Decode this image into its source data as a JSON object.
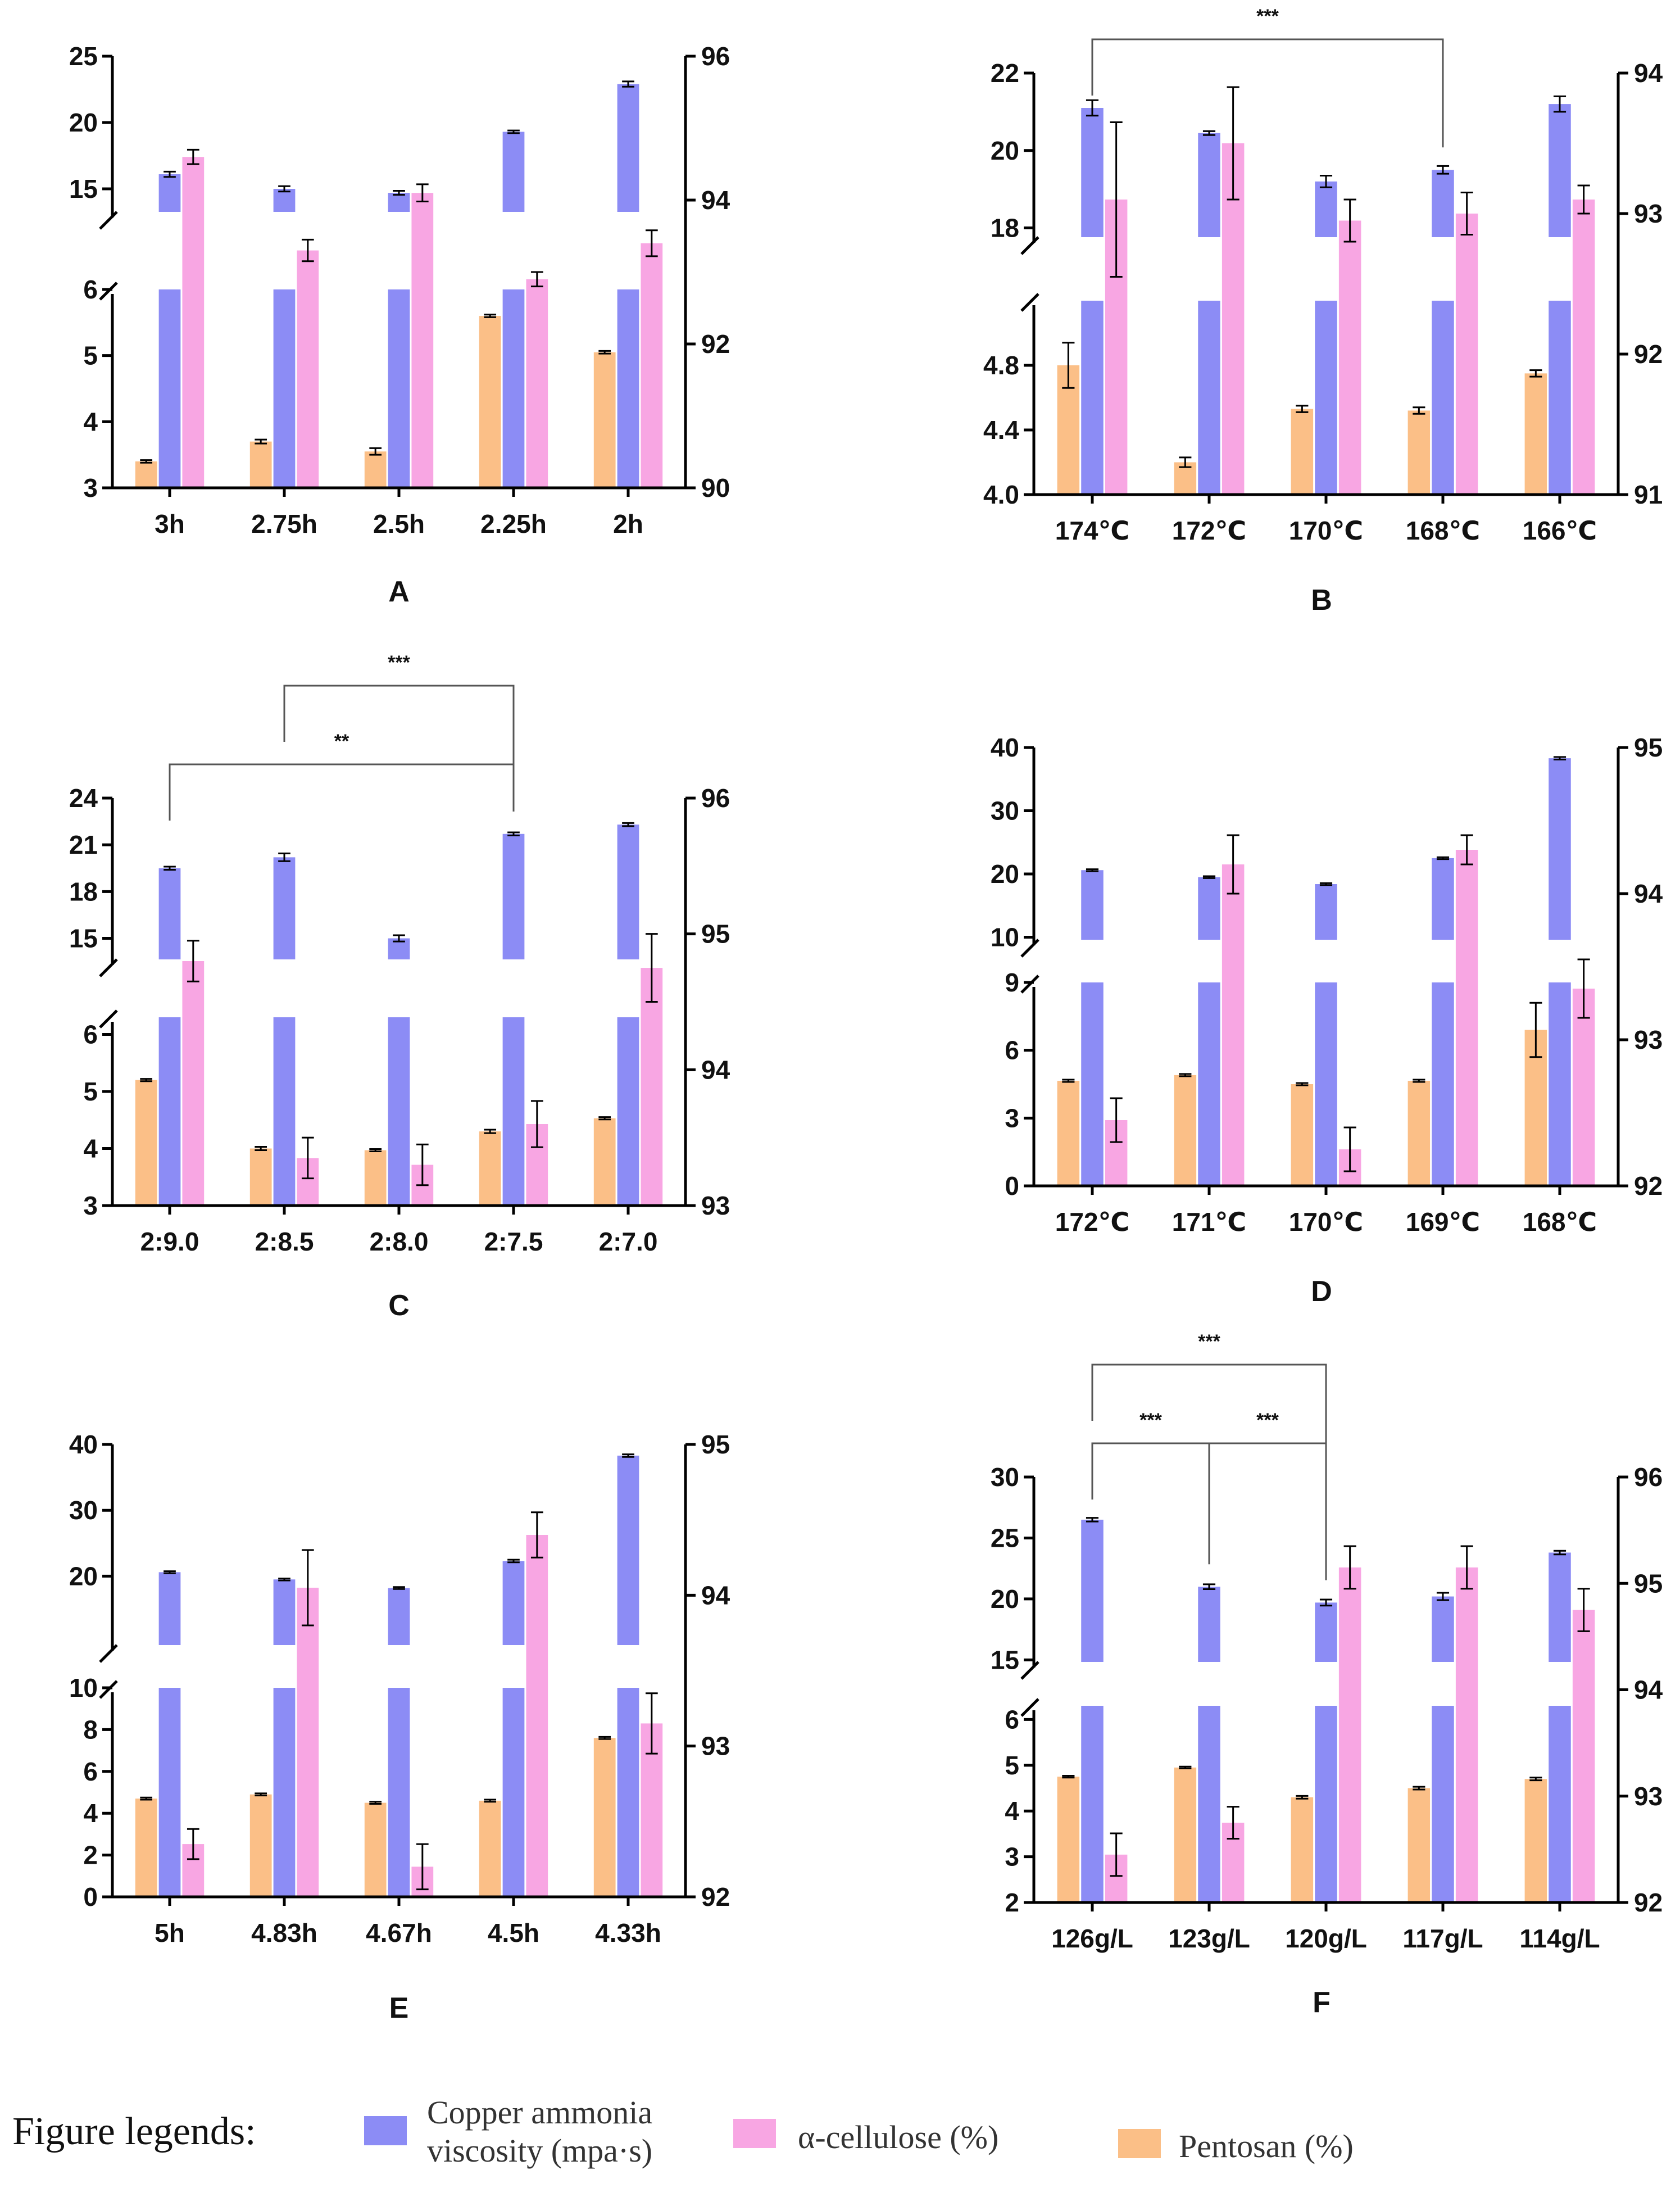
{
  "colors": {
    "viscosity": "#8c8cf5",
    "cellulose": "#f8a6e3",
    "pentosan": "#fbbf87",
    "axis": "#000000"
  },
  "legend": {
    "title": "Figure legends:",
    "items": [
      {
        "key": "viscosity",
        "lines": [
          "Copper ammonia",
          "viscosity (mpa·s)"
        ]
      },
      {
        "key": "cellulose",
        "lines": [
          "α-cellulose (%)"
        ]
      },
      {
        "key": "pentosan",
        "lines": [
          "Pentosan (%)"
        ]
      }
    ]
  },
  "chart_data": [
    {
      "panel": "A",
      "type": "bar",
      "categories": [
        "3h",
        "2.75h",
        "2.5h",
        "2.25h",
        "2h"
      ],
      "left_axis": {
        "lower": [
          3,
          6
        ],
        "lower_ticks": [
          "3",
          "4",
          "5",
          "6"
        ],
        "upper": [
          12.5,
          25
        ],
        "upper_ticks": [
          "15",
          "20",
          "25"
        ]
      },
      "right_axis": {
        "range": [
          90,
          96
        ],
        "ticks": [
          "90",
          "92",
          "94",
          "96"
        ]
      },
      "series": [
        {
          "name": "Pentosan (%)",
          "key": "pentosan",
          "axis": "left",
          "values": [
            3.4,
            3.7,
            3.55,
            5.6,
            5.05
          ],
          "errors": [
            0.02,
            0.03,
            0.05,
            0.02,
            0.02
          ]
        },
        {
          "name": "Copper ammonia viscosity (mpa·s)",
          "key": "viscosity",
          "axis": "left",
          "values": [
            16.1,
            15.0,
            14.7,
            19.3,
            22.9
          ],
          "errors": [
            0.2,
            0.2,
            0.15,
            0.1,
            0.2
          ]
        },
        {
          "name": "α-cellulose (%)",
          "key": "cellulose",
          "axis": "right",
          "values": [
            94.6,
            93.3,
            94.1,
            92.9,
            93.4
          ],
          "errors": [
            0.1,
            0.15,
            0.12,
            0.1,
            0.18
          ]
        }
      ],
      "brackets": []
    },
    {
      "panel": "B",
      "type": "bar",
      "categories": [
        "174℃",
        "172℃",
        "170℃",
        "168℃",
        "166℃"
      ],
      "left_axis": {
        "lower": [
          4.0,
          5.2
        ],
        "lower_ticks": [
          "4.0",
          "4.4",
          "4.8"
        ],
        "upper": [
          17.5,
          22
        ],
        "upper_ticks": [
          "18",
          "20",
          "22"
        ]
      },
      "right_axis": {
        "range": [
          91,
          94
        ],
        "ticks": [
          "91",
          "92",
          "93",
          "94"
        ]
      },
      "series": [
        {
          "name": "Pentosan (%)",
          "key": "pentosan",
          "axis": "left",
          "values": [
            4.8,
            4.2,
            4.53,
            4.52,
            4.75
          ],
          "errors": [
            0.14,
            0.03,
            0.02,
            0.02,
            0.02
          ]
        },
        {
          "name": "Copper ammonia viscosity (mpa·s)",
          "key": "viscosity",
          "axis": "left",
          "values": [
            21.1,
            20.45,
            19.2,
            19.5,
            21.2
          ],
          "errors": [
            0.2,
            0.05,
            0.15,
            0.1,
            0.2
          ]
        },
        {
          "name": "α-cellulose (%)",
          "key": "cellulose",
          "axis": "right",
          "values": [
            93.1,
            93.5,
            92.95,
            93.0,
            93.1
          ],
          "errors": [
            0.55,
            0.4,
            0.15,
            0.15,
            0.1
          ]
        }
      ],
      "brackets": [
        {
          "from": 0,
          "to": 3,
          "label": "***",
          "level": 0
        }
      ]
    },
    {
      "panel": "C",
      "type": "bar",
      "categories": [
        "2:9.0",
        "2:8.5",
        "2:8.0",
        "2:7.5",
        "2:7.0"
      ],
      "left_axis": {
        "lower": [
          3,
          6.3
        ],
        "lower_ticks": [
          "3",
          "4",
          "5",
          "6"
        ],
        "upper": [
          13,
          24
        ],
        "upper_ticks": [
          "15",
          "18",
          "21",
          "24"
        ]
      },
      "right_axis": {
        "range": [
          93,
          96
        ],
        "ticks": [
          "93",
          "94",
          "95",
          "96"
        ]
      },
      "series": [
        {
          "name": "Pentosan (%)",
          "key": "pentosan",
          "axis": "left",
          "values": [
            5.2,
            4.0,
            3.97,
            4.3,
            4.53
          ],
          "errors": [
            0.02,
            0.03,
            0.02,
            0.03,
            0.02
          ]
        },
        {
          "name": "Copper ammonia viscosity (mpa·s)",
          "key": "viscosity",
          "axis": "left",
          "values": [
            19.5,
            20.2,
            15.0,
            21.7,
            22.3
          ],
          "errors": [
            0.1,
            0.25,
            0.2,
            0.1,
            0.1
          ]
        },
        {
          "name": "α-cellulose (%)",
          "key": "cellulose",
          "axis": "right",
          "values": [
            94.8,
            93.35,
            93.3,
            93.6,
            94.75
          ],
          "errors": [
            0.15,
            0.15,
            0.15,
            0.17,
            0.25
          ]
        }
      ],
      "brackets": [
        {
          "from": 1,
          "to": 3,
          "label": "***",
          "level": 1
        },
        {
          "from": 0,
          "to": 3,
          "label": "**",
          "level": 0
        }
      ]
    },
    {
      "panel": "D",
      "type": "bar",
      "categories": [
        "172℃",
        "171℃",
        "170℃",
        "169℃",
        "168℃"
      ],
      "left_axis": {
        "lower": [
          0,
          9
        ],
        "lower_ticks": [
          "0",
          "3",
          "6",
          "9"
        ],
        "upper": [
          8,
          40
        ],
        "upper_ticks": [
          "10",
          "20",
          "30",
          "40"
        ]
      },
      "right_axis": {
        "range": [
          92,
          95
        ],
        "ticks": [
          "92",
          "93",
          "94",
          "95"
        ]
      },
      "series": [
        {
          "name": "Pentosan (%)",
          "key": "pentosan",
          "axis": "left",
          "values": [
            4.65,
            4.9,
            4.5,
            4.65,
            6.9
          ],
          "errors": [
            0.05,
            0.05,
            0.05,
            0.05,
            1.2
          ]
        },
        {
          "name": "Copper ammonia viscosity (mpa·s)",
          "key": "viscosity",
          "axis": "left",
          "values": [
            20.6,
            19.5,
            18.4,
            22.5,
            38.3
          ],
          "errors": [
            0.15,
            0.15,
            0.15,
            0.15,
            0.2
          ]
        },
        {
          "name": "α-cellulose (%)",
          "key": "cellulose",
          "axis": "right",
          "values": [
            92.45,
            94.2,
            92.25,
            94.3,
            93.35
          ],
          "errors": [
            0.15,
            0.2,
            0.15,
            0.1,
            0.2
          ]
        }
      ],
      "brackets": []
    },
    {
      "panel": "E",
      "type": "bar",
      "categories": [
        "5h",
        "4.83h",
        "4.67h",
        "4.5h",
        "4.33h"
      ],
      "left_axis": {
        "lower": [
          0,
          10
        ],
        "lower_ticks": [
          "0",
          "2",
          "4",
          "6",
          "8"
        ],
        "upper": [
          8,
          40
        ],
        "upper_ticks": [
          "10",
          "20",
          "30",
          "40"
        ]
      },
      "right_axis": {
        "range": [
          92,
          95
        ],
        "ticks": [
          "92",
          "93",
          "94",
          "95"
        ]
      },
      "series": [
        {
          "name": "Pentosan (%)",
          "key": "pentosan",
          "axis": "left",
          "values": [
            4.7,
            4.9,
            4.5,
            4.6,
            7.6
          ],
          "errors": [
            0.05,
            0.05,
            0.05,
            0.05,
            0.05
          ]
        },
        {
          "name": "Copper ammonia viscosity (mpa·s)",
          "key": "viscosity",
          "axis": "left",
          "values": [
            20.6,
            19.5,
            18.2,
            22.3,
            38.3
          ],
          "errors": [
            0.15,
            0.15,
            0.15,
            0.2,
            0.2
          ]
        },
        {
          "name": "α-cellulose (%)",
          "key": "cellulose",
          "axis": "right",
          "values": [
            92.35,
            94.05,
            92.2,
            94.4,
            93.15
          ],
          "errors": [
            0.1,
            0.25,
            0.15,
            0.15,
            0.2
          ]
        }
      ],
      "brackets": []
    },
    {
      "panel": "F",
      "type": "bar",
      "categories": [
        "126g/L",
        "123g/L",
        "120g/L",
        "117g/L",
        "114g/L"
      ],
      "left_axis": {
        "lower": [
          2,
          6.3
        ],
        "lower_ticks": [
          "2",
          "3",
          "4",
          "5",
          "6"
        ],
        "upper": [
          14,
          30
        ],
        "upper_ticks": [
          "15",
          "20",
          "25",
          "30"
        ]
      },
      "right_axis": {
        "range": [
          92,
          96
        ],
        "ticks": [
          "92",
          "93",
          "94",
          "95",
          "96"
        ]
      },
      "series": [
        {
          "name": "Pentosan (%)",
          "key": "pentosan",
          "axis": "left",
          "values": [
            4.75,
            4.95,
            4.3,
            4.5,
            4.7
          ],
          "errors": [
            0.02,
            0.02,
            0.03,
            0.03,
            0.03
          ]
        },
        {
          "name": "Copper ammonia viscosity (mpa·s)",
          "key": "viscosity",
          "axis": "left",
          "values": [
            26.5,
            21.0,
            19.7,
            20.2,
            23.8
          ],
          "errors": [
            0.15,
            0.2,
            0.25,
            0.3,
            0.15
          ]
        },
        {
          "name": "α-cellulose (%)",
          "key": "cellulose",
          "axis": "right",
          "values": [
            92.45,
            92.75,
            95.15,
            95.15,
            94.75
          ],
          "errors": [
            0.2,
            0.15,
            0.2,
            0.2,
            0.2
          ]
        }
      ],
      "brackets": [
        {
          "from": 0,
          "to": 2,
          "label": "***",
          "level": 1
        },
        {
          "from": 0,
          "to": 1,
          "label": "***",
          "level": 0
        },
        {
          "from": 1,
          "to": 2,
          "label": "***",
          "level": 0
        }
      ]
    }
  ]
}
